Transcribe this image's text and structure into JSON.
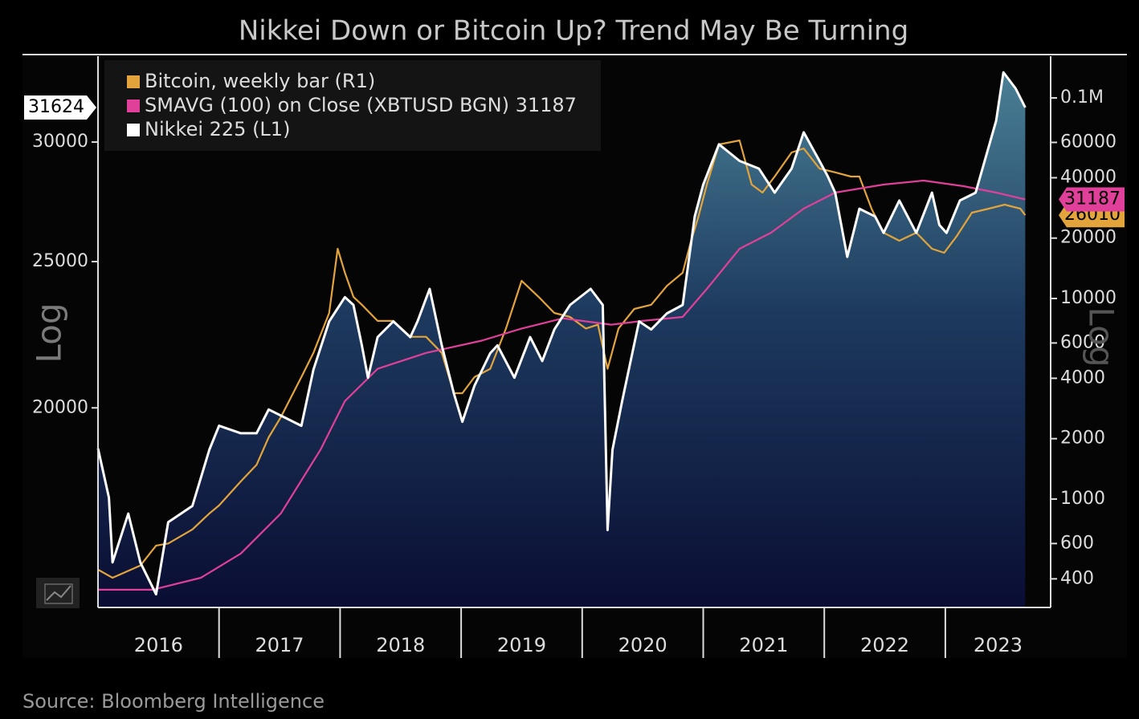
{
  "title": "Nikkei Down or Bitcoin Up? Trend May Be Turning",
  "source": "Source: Bloomberg Intelligence",
  "chart_data": {
    "type": "line",
    "xlim": [
      2016,
      2023.87
    ],
    "xticks": [
      2016,
      2017,
      2018,
      2019,
      2020,
      2021,
      2022,
      2023
    ],
    "ylim": [
      14750,
      34200
    ],
    "ylog": true,
    "yticks": [
      20000,
      25000,
      30000
    ],
    "ylabel": "Log",
    "y2lim": [
      288,
      161500
    ],
    "y2log": true,
    "y2ticks": [
      400,
      600,
      1000,
      2000,
      4000,
      6000,
      10000,
      20000,
      40000,
      60000,
      {
        "value": 100000,
        "label": "0.1M"
      }
    ],
    "y2label": "Log",
    "legend": "top-left",
    "grid": false,
    "series": [
      {
        "name": "Bitcoin, weekly bar (R1)",
        "color": "#e3a43c",
        "axis": "y2",
        "x": [
          2016.0,
          2016.12,
          2016.35,
          2016.48,
          2016.58,
          2016.78,
          2016.92,
          2017.0,
          2017.18,
          2017.31,
          2017.41,
          2017.51,
          2017.68,
          2017.78,
          2017.91,
          2017.98,
          2018.04,
          2018.11,
          2018.18,
          2018.31,
          2018.44,
          2018.58,
          2018.71,
          2018.84,
          2018.94,
          2019.01,
          2019.11,
          2019.24,
          2019.37,
          2019.5,
          2019.64,
          2019.77,
          2019.9,
          2020.03,
          2020.13,
          2020.21,
          2020.3,
          2020.43,
          2020.57,
          2020.7,
          2020.83,
          2020.9,
          2020.96,
          2021.03,
          2021.13,
          2021.3,
          2021.4,
          2021.49,
          2021.59,
          2021.73,
          2021.83,
          2021.96,
          2022.09,
          2022.22,
          2022.29,
          2022.39,
          2022.49,
          2022.62,
          2022.76,
          2022.89,
          2022.99,
          2023.09,
          2023.22,
          2023.36,
          2023.49,
          2023.62,
          2023.66
        ],
        "values": [
          445,
          405,
          466,
          586,
          600,
          705,
          847,
          929,
          1224,
          1480,
          2030,
          2560,
          4055,
          5350,
          8470,
          17700,
          13430,
          10190,
          9300,
          7730,
          7730,
          6440,
          6440,
          5350,
          3370,
          3370,
          4055,
          4460,
          7080,
          12250,
          10190,
          8470,
          8090,
          7080,
          7400,
          4460,
          7080,
          8870,
          9300,
          11560,
          13430,
          19410,
          25590,
          36980,
          58610,
          61380,
          36980,
          33730,
          40550,
          53460,
          56000,
          44460,
          42550,
          40550,
          40550,
          28050,
          21280,
          19410,
          21280,
          17700,
          16900,
          20300,
          26790,
          28050,
          29380,
          28050,
          26010
        ]
      },
      {
        "name": "SMAVG (100)  on Close (XBTUSD BGN) 31187",
        "color": "#e0409a",
        "axis": "y2",
        "x": [
          2016.0,
          2016.45,
          2016.85,
          2017.18,
          2017.51,
          2017.84,
          2018.04,
          2018.31,
          2018.71,
          2019.17,
          2019.5,
          2019.84,
          2020.24,
          2020.5,
          2020.83,
          2021.03,
          2021.3,
          2021.56,
          2021.83,
          2022.09,
          2022.49,
          2022.82,
          2023.15,
          2023.42,
          2023.66
        ],
        "values": [
          353,
          353,
          405,
          535,
          847,
          1770,
          3080,
          4460,
          5350,
          6160,
          7080,
          7960,
          7400,
          7730,
          8090,
          11160,
          17700,
          21280,
          28050,
          33730,
          36980,
          38720,
          36310,
          33730,
          31187
        ]
      },
      {
        "name": "Nikkei 225 (L1)",
        "color": "#ffffff",
        "axis": "y",
        "x": [
          2016.0,
          2016.09,
          2016.12,
          2016.25,
          2016.35,
          2016.48,
          2016.58,
          2016.78,
          2016.92,
          2017.0,
          2017.18,
          2017.31,
          2017.41,
          2017.68,
          2017.78,
          2017.91,
          2018.04,
          2018.11,
          2018.18,
          2018.23,
          2018.31,
          2018.44,
          2018.58,
          2018.64,
          2018.74,
          2018.84,
          2018.94,
          2019.01,
          2019.11,
          2019.24,
          2019.3,
          2019.44,
          2019.57,
          2019.67,
          2019.77,
          2019.9,
          2020.07,
          2020.17,
          2020.18,
          2020.21,
          2020.25,
          2020.33,
          2020.4,
          2020.47,
          2020.57,
          2020.7,
          2020.83,
          2020.93,
          2021.0,
          2021.13,
          2021.3,
          2021.46,
          2021.59,
          2021.73,
          2021.83,
          2021.96,
          2022.03,
          2022.09,
          2022.19,
          2022.29,
          2022.42,
          2022.49,
          2022.62,
          2022.76,
          2022.89,
          2022.95,
          2023.01,
          2023.12,
          2023.25,
          2023.42,
          2023.48,
          2023.58,
          2023.66
        ],
        "values": [
          18800,
          17440,
          15800,
          17020,
          15800,
          15050,
          16800,
          17220,
          18760,
          19460,
          19240,
          19240,
          19950,
          19460,
          21200,
          22820,
          23680,
          23400,
          22000,
          20940,
          22280,
          22820,
          22280,
          22820,
          23980,
          22000,
          20440,
          19580,
          20690,
          21740,
          22000,
          20940,
          22280,
          21480,
          22540,
          23400,
          23980,
          23400,
          21480,
          16600,
          18760,
          20200,
          21480,
          22820,
          22540,
          23100,
          23400,
          26780,
          28120,
          29900,
          29150,
          28810,
          27770,
          28810,
          30450,
          29150,
          28460,
          27770,
          25180,
          27100,
          26780,
          26120,
          27440,
          26120,
          27770,
          26440,
          26120,
          27440,
          27770,
          31000,
          33370,
          32560,
          31624
        ]
      }
    ]
  }
}
